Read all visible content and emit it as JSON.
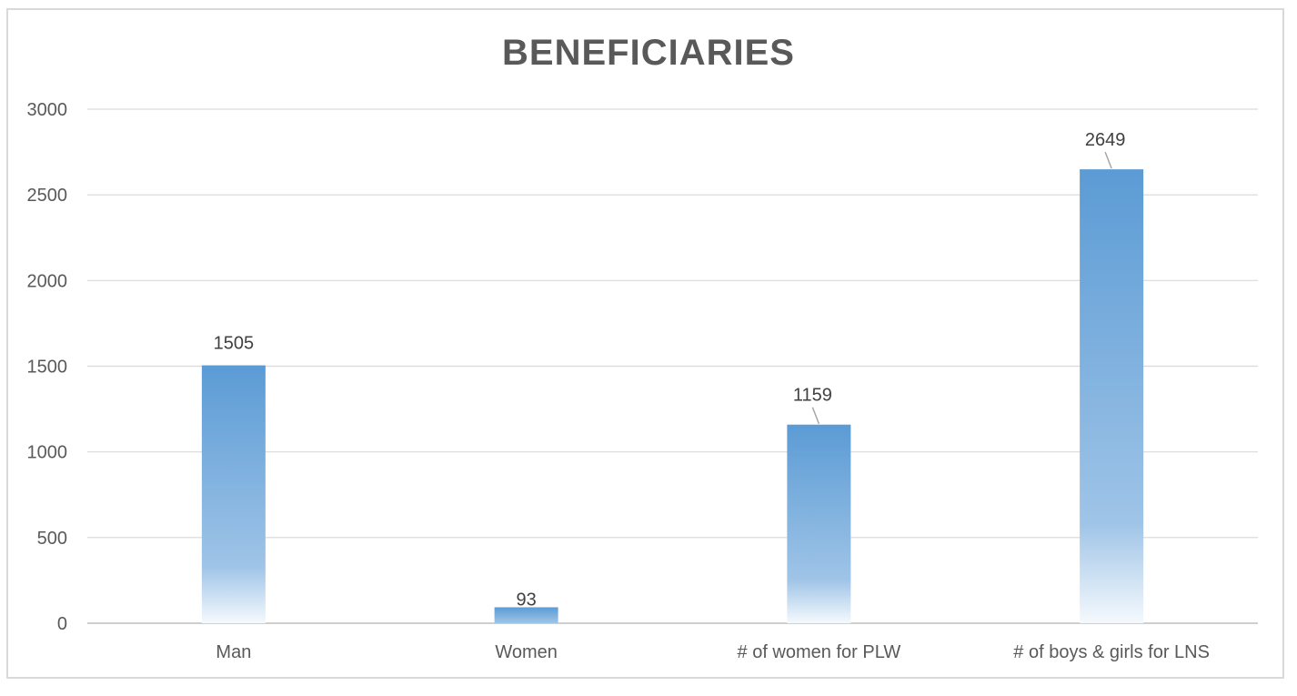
{
  "chart_data": {
    "type": "bar",
    "title": "BENEFICIARIES",
    "categories": [
      "Man",
      "Women",
      "# of women for PLW",
      "# of boys & girls for LNS"
    ],
    "values": [
      1505,
      93,
      1159,
      2649
    ],
    "data_labels": [
      "1505",
      "93",
      "1159",
      "2649"
    ],
    "ylim": [
      0,
      3000
    ],
    "yticks": [
      0,
      500,
      1000,
      1500,
      2000,
      2500,
      3000
    ],
    "grid": true,
    "legend": "none",
    "bar_color": "#5b9bd5",
    "xlabel": "",
    "ylabel": ""
  }
}
